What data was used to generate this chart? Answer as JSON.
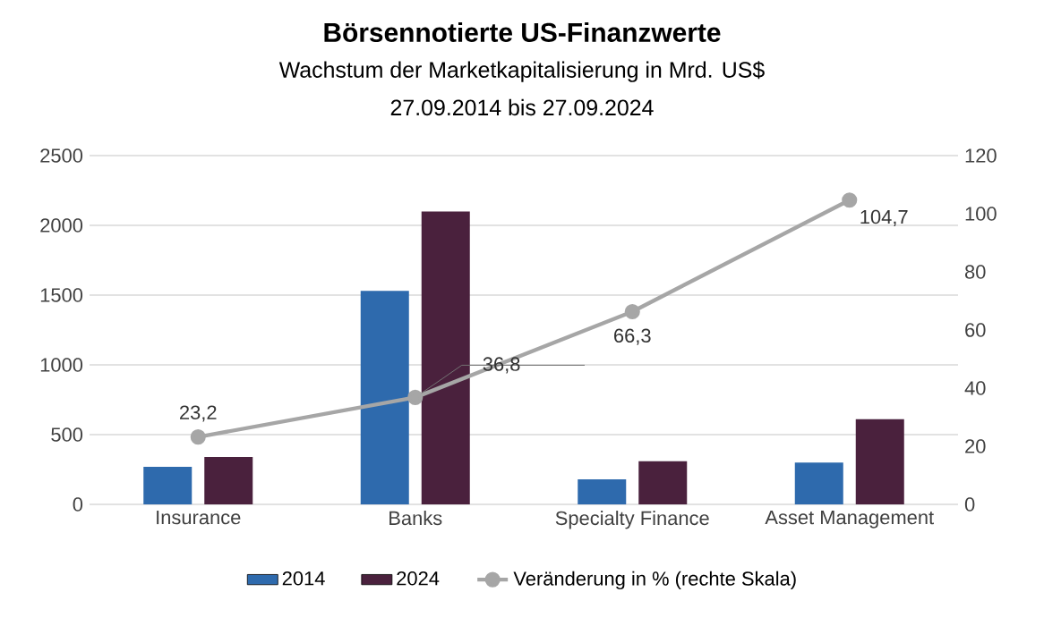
{
  "chart_data": {
    "type": "bar",
    "title": "Börsennotierte US-Finanzwerte",
    "subtitle": "Wachstum der Marketkapitalisierung in Mrd. US$",
    "annotations": [
      "27.09.2014 bis 27.09.2024"
    ],
    "categories": [
      "Insurance",
      "Banks",
      "Specialty Finance",
      "Asset Management"
    ],
    "series": [
      {
        "name": "2014",
        "color": "#2e6aad",
        "values": [
          270,
          1530,
          180,
          300
        ]
      },
      {
        "name": "2024",
        "color": "#4a213d",
        "values": [
          340,
          2100,
          310,
          610
        ]
      },
      {
        "name": "Veränderung in % (rechte Skala)",
        "type": "line",
        "axis": "y2",
        "color": "#a6a6a6",
        "marker": "circle",
        "values": [
          23.2,
          36.8,
          66.3,
          104.7
        ],
        "value_labels": [
          "23,2",
          "36,8",
          "66,3",
          "104,7"
        ]
      }
    ],
    "ylim": [
      0,
      2500
    ],
    "yticks": [
      0,
      500,
      1000,
      1500,
      2000,
      2500
    ],
    "y2lim": [
      0,
      120
    ],
    "y2ticks": [
      0,
      20,
      40,
      60,
      80,
      100,
      120
    ],
    "grid": "y",
    "legend": "bottom"
  }
}
